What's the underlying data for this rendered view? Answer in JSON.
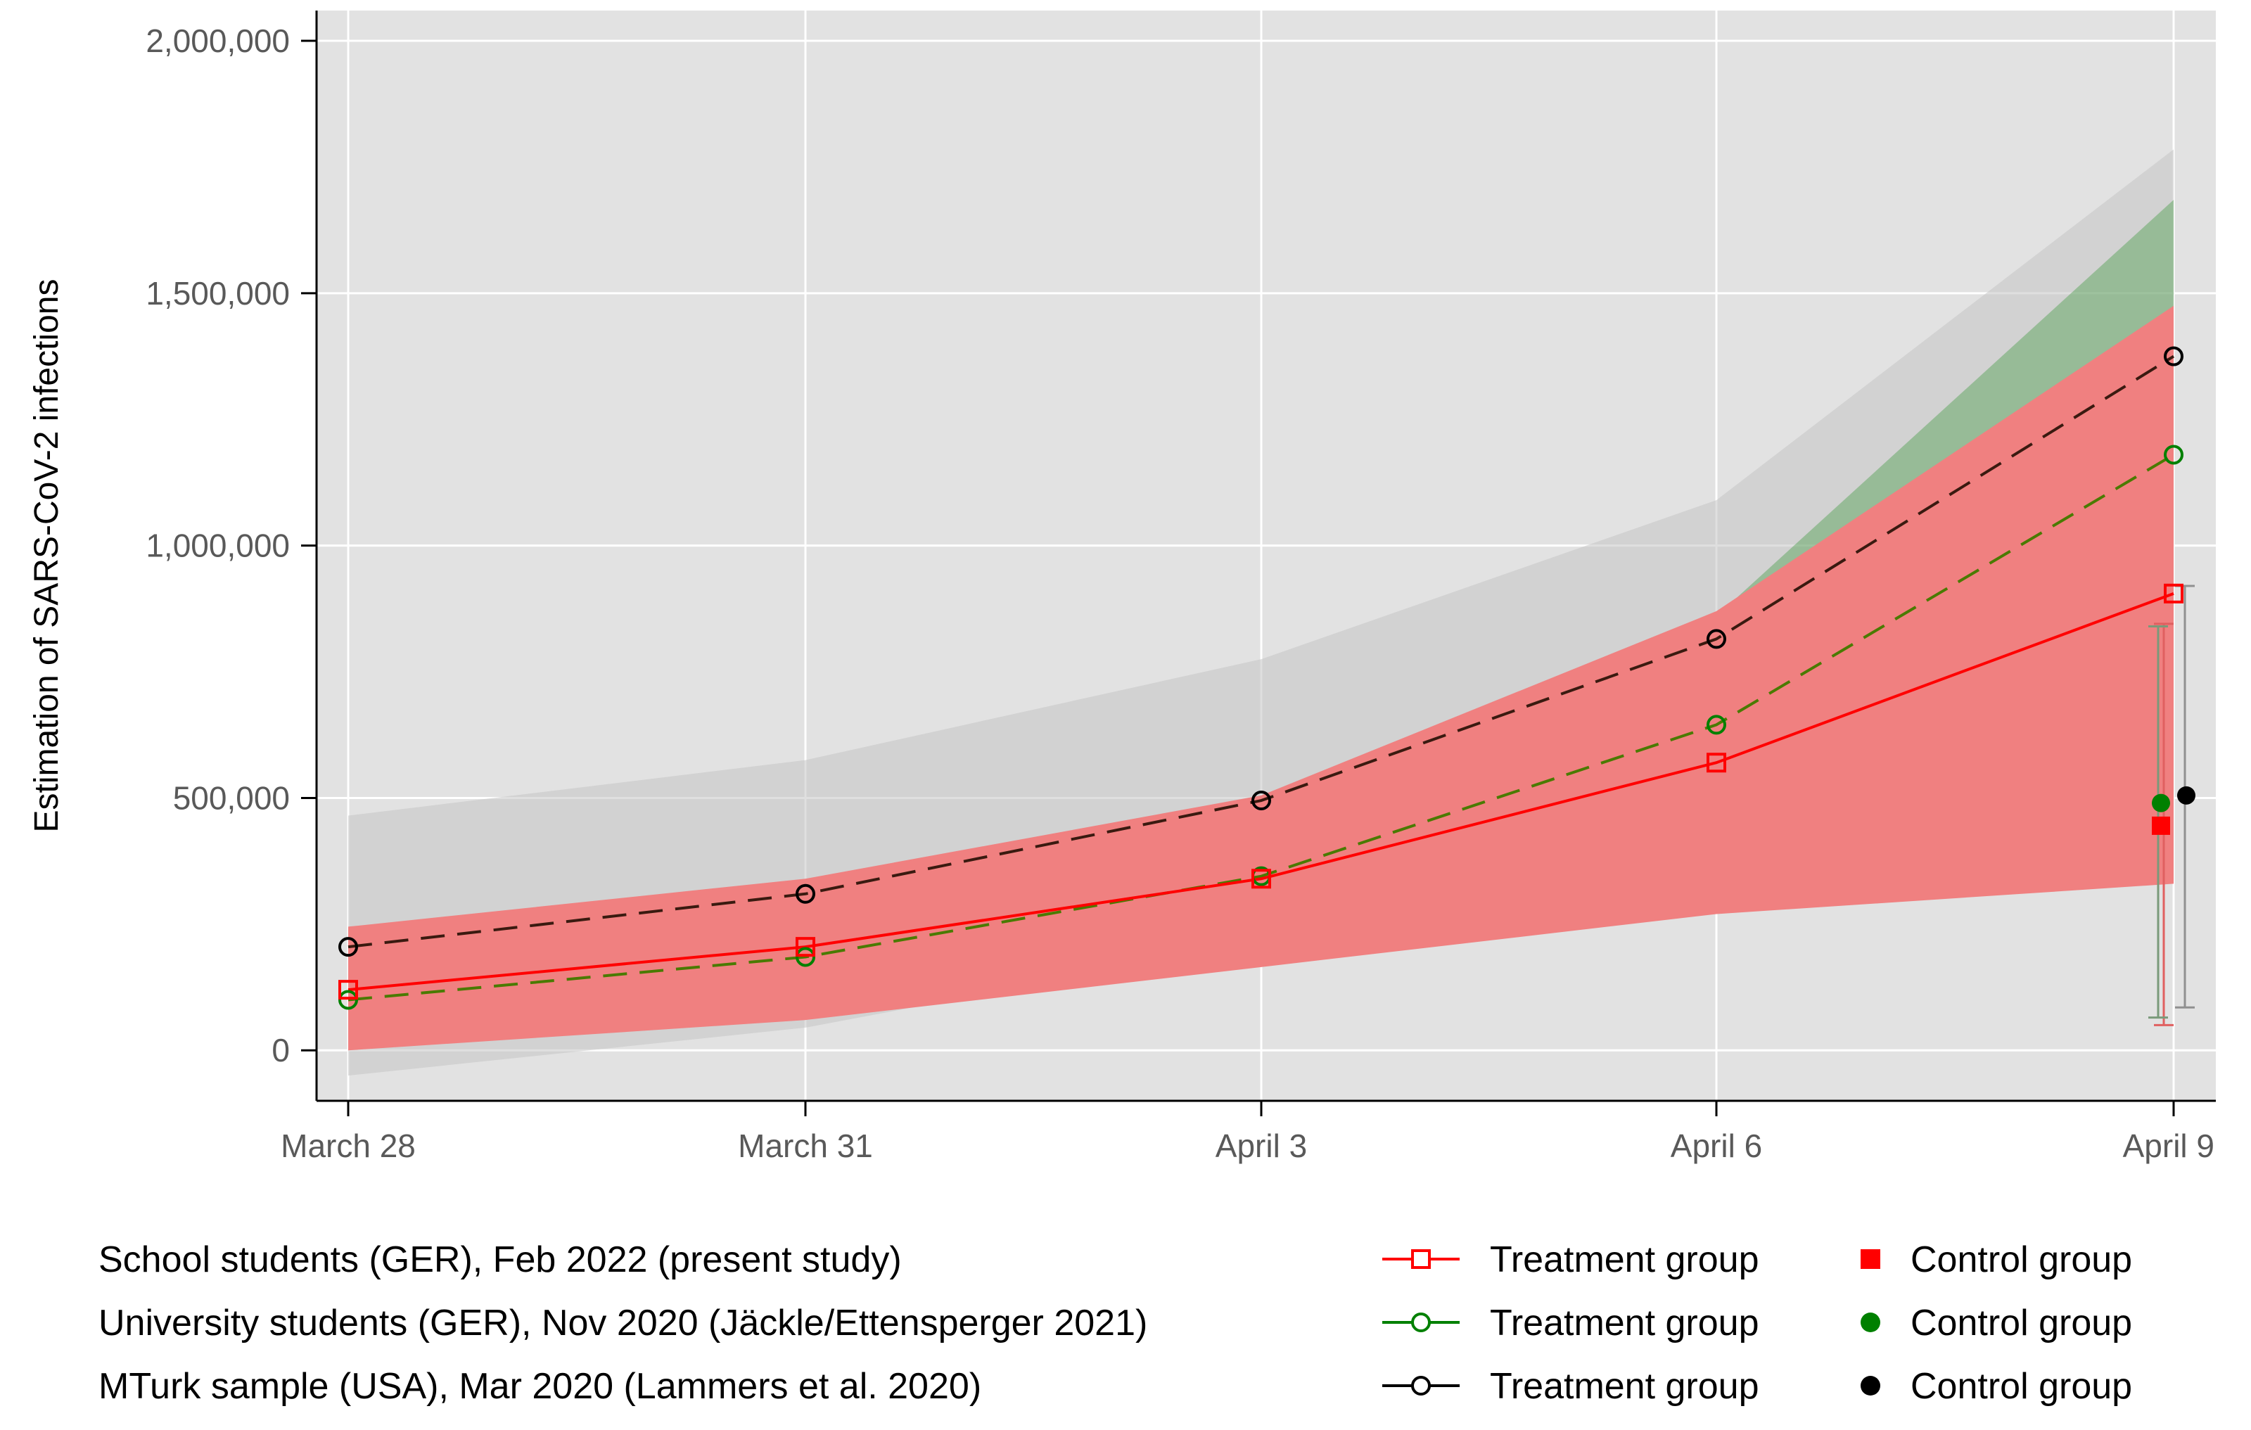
{
  "chart_data": {
    "type": "line",
    "ylabel": "Estimation of SARS-CoV-2 infections",
    "xlabel": "",
    "categories": [
      "March 28",
      "March 31",
      "April 3",
      "April 6",
      "April 9"
    ],
    "ylim": [
      -100000,
      2060000
    ],
    "yticks": [
      0,
      500000,
      1000000,
      1500000,
      2000000
    ],
    "ytick_labels": [
      "0",
      "500,000",
      "1,000,000",
      "1,500,000",
      "2,000,000"
    ],
    "grid": true,
    "legend_position": "bottom",
    "series": [
      {
        "name": "School students (GER), Feb 2022 (present study)",
        "color": "#ff0000",
        "band_color": "#f08080",
        "dash": "solid",
        "marker": "open-square",
        "treatment_label": "Treatment group",
        "control_label": "Control group",
        "treatment_values": [
          120000,
          205000,
          340000,
          570000,
          905000
        ],
        "band_lower": [
          0,
          60000,
          165000,
          270000,
          330000
        ],
        "band_upper": [
          245000,
          340000,
          505000,
          870000,
          1475000
        ],
        "control_value": 445000,
        "control_error": [
          50000,
          845000
        ]
      },
      {
        "name": "University students (GER), Nov 2020 (Jäckle/Ettensperger 2021)",
        "color": "#008000",
        "band_color": "#50a050",
        "dash": "dashed",
        "marker": "open-circle",
        "treatment_label": "Treatment group",
        "control_label": "Control group",
        "treatment_values": [
          100000,
          185000,
          345000,
          645000,
          1180000
        ],
        "band_lower": [
          70000,
          135000,
          250000,
          430000,
          680000
        ],
        "band_upper": [
          155000,
          230000,
          440000,
          860000,
          1685000
        ],
        "control_value": 490000,
        "control_error": [
          65000,
          840000
        ]
      },
      {
        "name": "MTurk sample (USA), Mar 2020 (Lammers et al. 2020)",
        "color": "#000000",
        "band_color": "#c4c4c4",
        "dash": "dashed",
        "marker": "open-circle",
        "treatment_label": "Treatment group",
        "control_label": "Control group",
        "treatment_values": [
          205000,
          310000,
          495000,
          815000,
          1375000
        ],
        "band_lower": [
          -50000,
          45000,
          215000,
          560000,
          960000
        ],
        "band_upper": [
          465000,
          575000,
          775000,
          1090000,
          1785000
        ],
        "control_value": 505000,
        "control_error": [
          85000,
          920000
        ]
      }
    ]
  }
}
